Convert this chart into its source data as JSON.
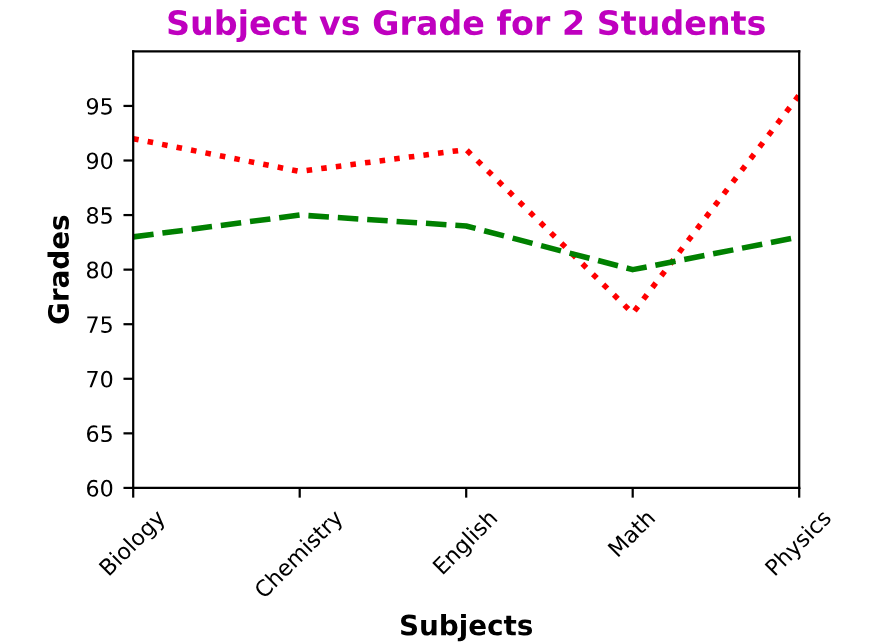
{
  "chart_data": {
    "type": "line",
    "title": "Subject vs Grade for 2 Students",
    "xlabel": "Subjects",
    "ylabel": "Grades",
    "categories": [
      "Biology",
      "Chemistry",
      "English",
      "Math",
      "Physics"
    ],
    "series": [
      {
        "color": "#ff0000",
        "line_style": "dotted",
        "values": [
          92,
          89,
          91,
          76,
          96
        ]
      },
      {
        "color": "#008000",
        "line_style": "dashed",
        "values": [
          83,
          85,
          84,
          80,
          83
        ]
      }
    ],
    "ylim": [
      60,
      100
    ],
    "yticks": [
      60,
      65,
      70,
      75,
      80,
      85,
      90,
      95
    ],
    "grid": false,
    "legend": false
  }
}
